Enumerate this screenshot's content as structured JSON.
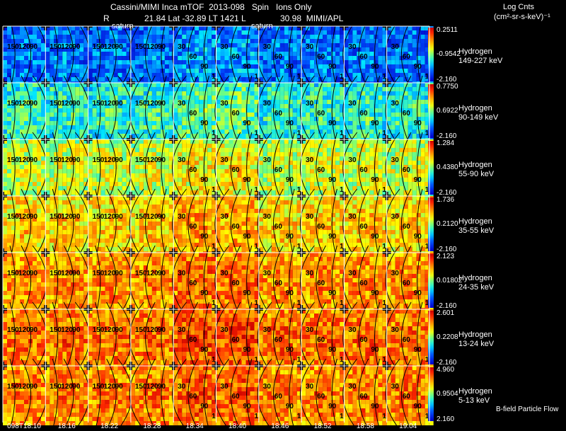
{
  "header": {
    "title": "Cassini/MIMI Inca mTOF  2013-098   Spin   Ions Only",
    "line2_r": "R",
    "line2_mid": "21.84 Lat -32.89 LT 1421 L",
    "line2_right": "30.98  MIMI/APL",
    "units_line1": "Log Cnts",
    "units_line2": "(cm²-sr-s-keV)⁻¹",
    "saturn_labels": [
      "saturn",
      "saturn"
    ]
  },
  "footer": {
    "legend_text": "B-field Particle Flow"
  },
  "chart_data": {
    "type": "heatmap",
    "title": "Cassini/MIMI Inca mTOF  2013-098   Spin   Ions Only",
    "colormap": "rainbow (blue-cyan-green-yellow-orange-red)",
    "contour_labels": [
      "150",
      "120",
      "90",
      "60",
      "30"
    ],
    "time_labels": [
      "098T18:10",
      "18:16",
      "18:22",
      "18:28",
      "18:34",
      "18:40",
      "18:46",
      "18:52",
      "18:58",
      "19:04"
    ],
    "rows": [
      {
        "species": "Hydrogen",
        "energy": "149-227 keV",
        "cmax": "0.2511",
        "cmid": "-0.9542",
        "cmin": "-2.160",
        "level": 0.25
      },
      {
        "species": "Hydrogen",
        "energy": "90-149 keV",
        "cmax": "0.7750",
        "cmid": "0.6922",
        "cmin": "-2.160",
        "level": 0.45
      },
      {
        "species": "Hydrogen",
        "energy": "55-90 keV",
        "cmax": "1.284",
        "cmid": "0.4380",
        "cmin": "-2.160",
        "level": 0.62
      },
      {
        "species": "Hydrogen",
        "energy": "35-55 keV",
        "cmax": "1.736",
        "cmid": "0.2120",
        "cmin": "-2.160",
        "level": 0.72
      },
      {
        "species": "Hydrogen",
        "energy": "24-35 keV",
        "cmax": "2.123",
        "cmid": "0.01802",
        "cmin": "-2.160",
        "level": 0.8
      },
      {
        "species": "Hydrogen",
        "energy": "13-24 keV",
        "cmax": "2.601",
        "cmid": "0.2208",
        "cmin": "-2.160",
        "level": 0.84
      },
      {
        "species": "Hydrogen",
        "energy": "5-13 keV",
        "cmax": "4.960",
        "cmid": "0.9504",
        "cmin": "2.160",
        "level": 0.82
      }
    ]
  }
}
